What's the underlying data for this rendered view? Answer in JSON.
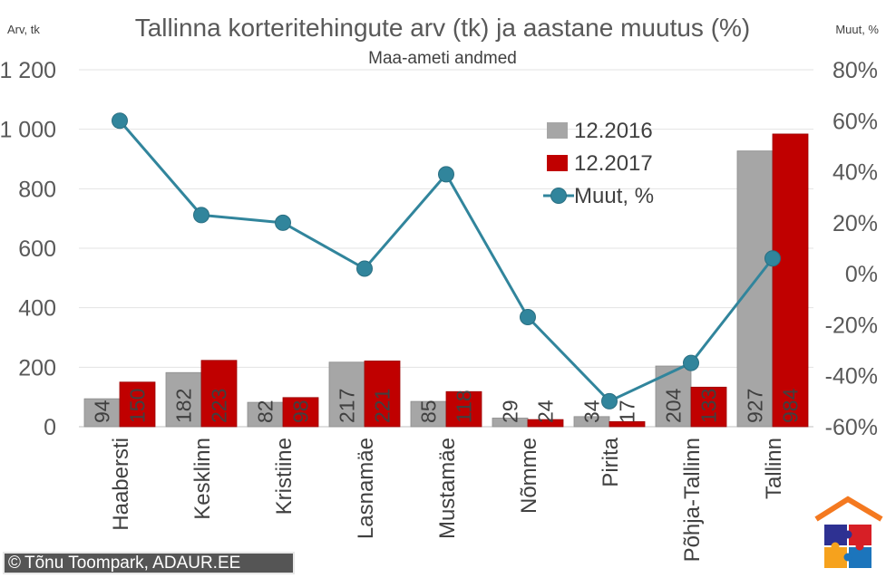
{
  "chart_data": {
    "type": "bar",
    "title": "Tallinna korteritehingute arv (tk) ja aastane muutus (%)",
    "subtitle": "Maa-ameti andmed",
    "ylabel": "Arv, tk",
    "y2label": "Muut, %",
    "categories": [
      "Haabersti",
      "Kesklinn",
      "Kristiine",
      "Lasnamäe",
      "Mustamäe",
      "Nõmme",
      "Pirita",
      "Põhja-Tallinn",
      "Tallinn"
    ],
    "series": [
      {
        "name": "12.2016",
        "type": "bar",
        "axis": "left",
        "color": "#a6a6a6",
        "values": [
          94,
          182,
          82,
          217,
          85,
          29,
          34,
          204,
          927
        ]
      },
      {
        "name": "12.2017",
        "type": "bar",
        "axis": "left",
        "color": "#c00000",
        "values": [
          150,
          223,
          98,
          221,
          118,
          24,
          17,
          133,
          984
        ]
      },
      {
        "name": "Muut, %",
        "type": "line",
        "axis": "right",
        "color": "#31859c",
        "values": [
          60,
          23,
          20,
          2,
          39,
          -17,
          -50,
          -35,
          6
        ]
      }
    ],
    "ylim": [
      0,
      1200
    ],
    "yticks": [
      "0",
      "200",
      "400",
      "600",
      "800",
      "1 000",
      "1 200"
    ],
    "y2lim": [
      -60,
      80
    ],
    "y2ticks": [
      "-60%",
      "-40%",
      "-20%",
      "0%",
      "20%",
      "40%",
      "60%",
      "80%"
    ],
    "legend_position": "top-right (inside plot)",
    "grid": true
  },
  "credit": {
    "symbol": "©",
    "text": "Tõnu Toompark, ADAUR.EE"
  },
  "logo": {
    "icon": "house-puzzle-logo",
    "colors": [
      "#f47920",
      "#2e3192",
      "#d71f26",
      "#f6a21d",
      "#1c75bc"
    ]
  }
}
